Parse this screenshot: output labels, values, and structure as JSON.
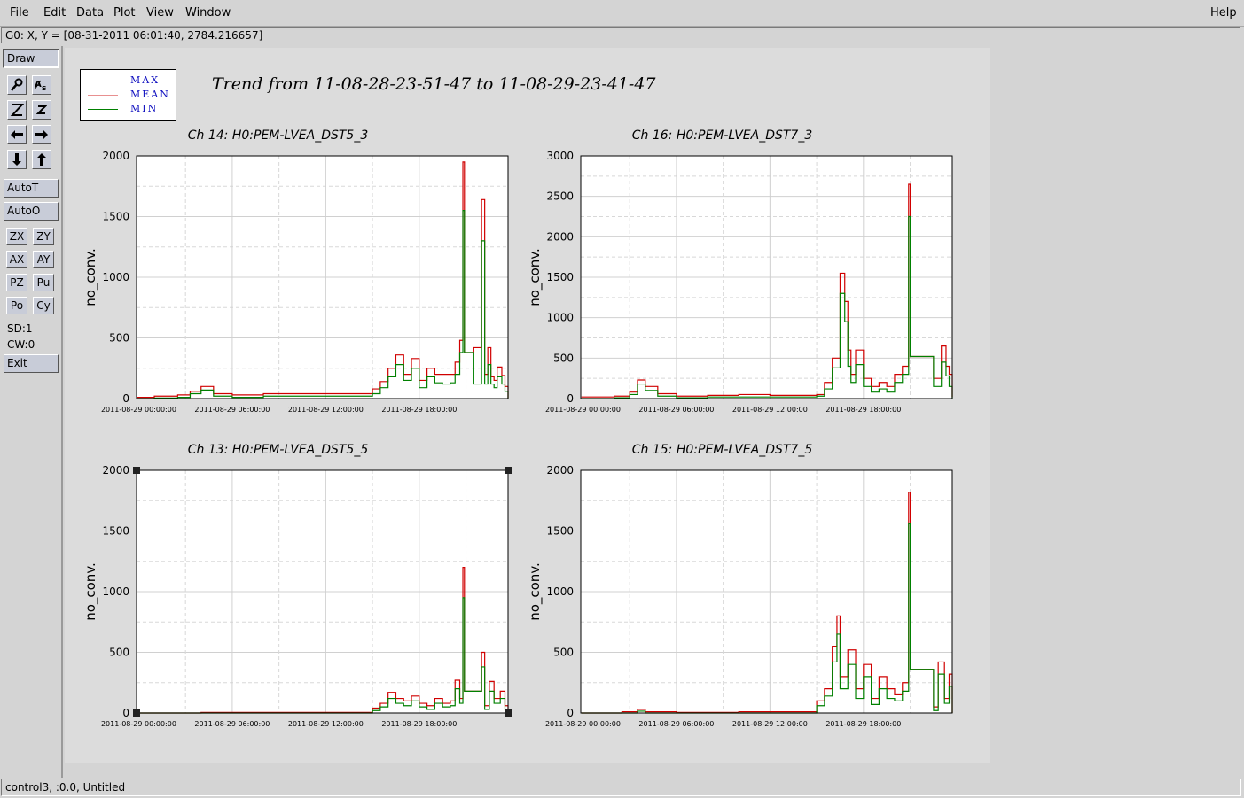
{
  "menu": {
    "file": "File",
    "edit": "Edit",
    "data": "Data",
    "plot": "Plot",
    "view": "View",
    "window": "Window",
    "help": "Help"
  },
  "coord_readout": "G0: X, Y = [08-31-2011 06:01:40, 2784.216657]",
  "toolbar": {
    "draw": "Draw",
    "autot": "AutoT",
    "autoo": "AutoO",
    "zx": "ZX",
    "zy": "ZY",
    "ax": "AX",
    "ay": "AY",
    "pz": "PZ",
    "pu": "Pu",
    "po": "Po",
    "cy": "Cy",
    "sd": "SD:1",
    "cw": "CW:0",
    "exit": "Exit",
    "icons": [
      "magnifier-icon",
      "as-text-icon",
      "zoom-out-icon",
      "zoom-in-icon",
      "arrow-left-icon",
      "arrow-right-icon",
      "arrow-down-icon",
      "arrow-up-icon"
    ]
  },
  "status": "control3, :0.0, Untitled",
  "legend": [
    {
      "label": "MAX",
      "color": "#d00000"
    },
    {
      "label": "MEAN",
      "color": "#e89090"
    },
    {
      "label": "MIN",
      "color": "#008000"
    }
  ],
  "trend_title": "Trend from 11-08-28-23-51-47 to 11-08-29-23-41-47",
  "chart_data": [
    {
      "type": "line",
      "title": "Ch 14: H0:PEM-LVEA_DST5_3",
      "ylabel": "no_conv.",
      "ylim": [
        0,
        2000
      ],
      "yticks": [
        0,
        500,
        1000,
        1500,
        2000
      ],
      "xticks": [
        "2011-08-29 00:00:00",
        "2011-08-29 06:00:00",
        "2011-08-29 12:00:00",
        "2011-08-29 18:00:00"
      ],
      "xlim_hours": [
        -0.14,
        23.7
      ],
      "grid": true,
      "series": [
        {
          "name": "MAX",
          "color": "#d00000",
          "x": [
            -0.1,
            1.0,
            2.5,
            3.3,
            4.0,
            4.8,
            6.0,
            8.0,
            10.0,
            12.0,
            14.0,
            15.0,
            15.5,
            16.0,
            16.5,
            17.0,
            17.5,
            18.0,
            18.5,
            19.0,
            19.5,
            20.0,
            20.3,
            20.6,
            20.8,
            20.9,
            21.3,
            21.4,
            21.5,
            22.0,
            22.2,
            22.4,
            22.6,
            22.8,
            23.0,
            23.3,
            23.5,
            23.7
          ],
          "y": [
            10,
            20,
            30,
            60,
            100,
            40,
            30,
            40,
            40,
            40,
            40,
            80,
            140,
            250,
            360,
            200,
            330,
            150,
            250,
            200,
            200,
            200,
            300,
            480,
            1950,
            380,
            380,
            380,
            420,
            1640,
            200,
            420,
            180,
            150,
            260,
            190,
            100,
            5
          ]
        },
        {
          "name": "MIN",
          "color": "#008000",
          "x": [
            -0.1,
            1.0,
            2.5,
            3.3,
            4.0,
            4.8,
            6.0,
            8.0,
            10.0,
            12.0,
            14.0,
            15.0,
            15.5,
            16.0,
            16.5,
            17.0,
            17.5,
            18.0,
            18.5,
            19.0,
            19.5,
            20.0,
            20.3,
            20.6,
            20.8,
            20.9,
            21.3,
            21.4,
            21.5,
            22.0,
            22.2,
            22.4,
            22.6,
            22.8,
            23.0,
            23.3,
            23.5,
            23.7
          ],
          "y": [
            0,
            5,
            10,
            40,
            70,
            20,
            10,
            20,
            20,
            20,
            20,
            40,
            90,
            180,
            280,
            150,
            250,
            90,
            180,
            130,
            120,
            130,
            200,
            380,
            1550,
            380,
            380,
            380,
            120,
            1300,
            120,
            280,
            120,
            90,
            180,
            120,
            60,
            0
          ]
        }
      ]
    },
    {
      "type": "line",
      "title": "Ch 16: H0:PEM-LVEA_DST7_3",
      "ylabel": "no_conv.",
      "ylim": [
        0,
        3000
      ],
      "yticks": [
        0,
        500,
        1000,
        1500,
        2000,
        2500,
        3000
      ],
      "xticks": [
        "2011-08-29 00:00:00",
        "2011-08-29 06:00:00",
        "2011-08-29 12:00:00",
        "2011-08-29 18:00:00"
      ],
      "xlim_hours": [
        -0.14,
        23.7
      ],
      "grid": true,
      "series": [
        {
          "name": "MAX",
          "color": "#d00000",
          "x": [
            -0.1,
            2.0,
            3.0,
            3.5,
            4.0,
            4.8,
            6.0,
            8.0,
            10.0,
            12.0,
            14.0,
            15.0,
            15.5,
            16.0,
            16.5,
            16.8,
            17.0,
            17.2,
            17.5,
            18.0,
            18.5,
            19.0,
            19.5,
            20.0,
            20.5,
            20.9,
            21.0,
            21.2,
            22.3,
            22.5,
            23.0,
            23.3,
            23.5,
            23.7
          ],
          "y": [
            20,
            30,
            80,
            230,
            150,
            60,
            30,
            40,
            50,
            40,
            40,
            50,
            200,
            500,
            1550,
            1200,
            600,
            300,
            600,
            250,
            150,
            200,
            150,
            300,
            400,
            2650,
            520,
            520,
            520,
            250,
            650,
            400,
            300,
            20
          ]
        },
        {
          "name": "MIN",
          "color": "#008000",
          "x": [
            -0.1,
            2.0,
            3.0,
            3.5,
            4.0,
            4.8,
            6.0,
            8.0,
            10.0,
            12.0,
            14.0,
            15.0,
            15.5,
            16.0,
            16.5,
            16.8,
            17.0,
            17.2,
            17.5,
            18.0,
            18.5,
            19.0,
            19.5,
            20.0,
            20.5,
            20.9,
            21.0,
            21.2,
            22.3,
            22.5,
            23.0,
            23.3,
            23.5,
            23.7
          ],
          "y": [
            0,
            10,
            50,
            180,
            100,
            30,
            10,
            20,
            20,
            20,
            20,
            30,
            120,
            380,
            1300,
            950,
            400,
            200,
            420,
            150,
            80,
            120,
            80,
            200,
            300,
            2250,
            520,
            520,
            520,
            150,
            450,
            280,
            150,
            0
          ]
        }
      ]
    },
    {
      "type": "line",
      "title": "Ch 13: H0:PEM-LVEA_DST5_5",
      "ylabel": "no_conv.",
      "ylim": [
        0,
        2000
      ],
      "yticks": [
        0,
        500,
        1000,
        1500,
        2000
      ],
      "xticks": [
        "2011-08-29 00:00:00",
        "2011-08-29 06:00:00",
        "2011-08-29 12:00:00",
        "2011-08-29 18:00:00"
      ],
      "xlim_hours": [
        -0.14,
        23.7
      ],
      "grid": true,
      "series": [
        {
          "name": "MAX",
          "color": "#d00000",
          "x": [
            -0.1,
            4.0,
            8.0,
            12.0,
            14.5,
            15.0,
            15.5,
            16.0,
            16.5,
            17.0,
            17.5,
            18.0,
            18.5,
            19.0,
            19.5,
            20.0,
            20.3,
            20.6,
            20.8,
            20.9,
            21.3,
            21.4,
            21.5,
            22.0,
            22.2,
            22.5,
            22.8,
            23.2,
            23.5,
            23.7
          ],
          "y": [
            0,
            5,
            5,
            5,
            5,
            40,
            80,
            170,
            120,
            100,
            140,
            80,
            60,
            120,
            80,
            100,
            270,
            120,
            1200,
            180,
            180,
            180,
            180,
            500,
            60,
            260,
            120,
            180,
            60,
            0
          ]
        },
        {
          "name": "MIN",
          "color": "#008000",
          "x": [
            -0.1,
            4.0,
            8.0,
            12.0,
            14.5,
            15.0,
            15.5,
            16.0,
            16.5,
            17.0,
            17.5,
            18.0,
            18.5,
            19.0,
            19.5,
            20.0,
            20.3,
            20.6,
            20.8,
            20.9,
            21.3,
            21.4,
            21.5,
            22.0,
            22.2,
            22.5,
            22.8,
            23.2,
            23.5,
            23.7
          ],
          "y": [
            0,
            0,
            0,
            0,
            0,
            20,
            50,
            120,
            80,
            60,
            100,
            50,
            30,
            80,
            50,
            60,
            200,
            80,
            950,
            180,
            180,
            180,
            180,
            380,
            30,
            180,
            80,
            120,
            30,
            0
          ]
        }
      ]
    },
    {
      "type": "line",
      "title": "Ch 15: H0:PEM-LVEA_DST7_5",
      "ylabel": "no_conv.",
      "ylim": [
        0,
        2000
      ],
      "yticks": [
        0,
        500,
        1000,
        1500,
        2000
      ],
      "xticks": [
        "2011-08-29 00:00:00",
        "2011-08-29 06:00:00",
        "2011-08-29 12:00:00",
        "2011-08-29 18:00:00"
      ],
      "xlim_hours": [
        -0.14,
        23.7
      ],
      "grid": true,
      "series": [
        {
          "name": "MAX",
          "color": "#d00000",
          "x": [
            -0.1,
            2.5,
            3.5,
            4.0,
            6.0,
            10.0,
            14.5,
            15.0,
            15.5,
            16.0,
            16.3,
            16.5,
            17.0,
            17.5,
            18.0,
            18.5,
            19.0,
            19.5,
            20.0,
            20.5,
            20.9,
            21.0,
            21.3,
            22.2,
            22.5,
            22.8,
            23.2,
            23.5,
            23.7
          ],
          "y": [
            0,
            10,
            30,
            10,
            5,
            10,
            10,
            100,
            200,
            550,
            800,
            300,
            520,
            200,
            400,
            120,
            300,
            200,
            150,
            250,
            1820,
            360,
            360,
            360,
            50,
            420,
            120,
            320,
            0
          ]
        },
        {
          "name": "MIN",
          "color": "#008000",
          "x": [
            -0.1,
            2.5,
            3.5,
            4.0,
            6.0,
            10.0,
            14.5,
            15.0,
            15.5,
            16.0,
            16.3,
            16.5,
            17.0,
            17.5,
            18.0,
            18.5,
            19.0,
            19.5,
            20.0,
            20.5,
            20.9,
            21.0,
            21.3,
            22.2,
            22.5,
            22.8,
            23.2,
            23.5,
            23.7
          ],
          "y": [
            0,
            0,
            15,
            0,
            0,
            0,
            0,
            60,
            140,
            420,
            650,
            200,
            400,
            120,
            300,
            70,
            200,
            120,
            100,
            180,
            1560,
            360,
            360,
            360,
            20,
            320,
            80,
            220,
            0
          ]
        }
      ]
    }
  ]
}
